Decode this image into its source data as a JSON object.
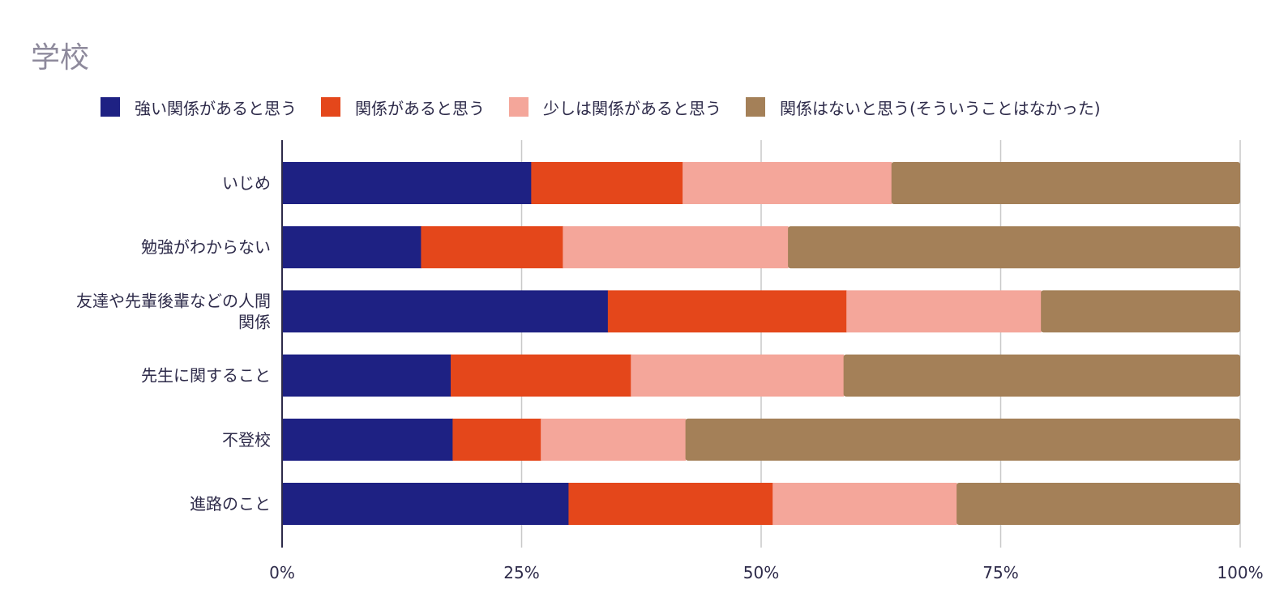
{
  "chart_data": {
    "type": "bar",
    "orientation": "horizontal",
    "stacked": "percent",
    "title": "学校",
    "categories": [
      "いじめ",
      "勉強がわからない",
      "友達や先輩後輩などの人間関係",
      "先生に関すること",
      "不登校",
      "進路のこと"
    ],
    "category_lines": [
      [
        "いじめ"
      ],
      [
        "勉強がわからない"
      ],
      [
        "友達や先輩後輩などの人間",
        "関係"
      ],
      [
        "先生に関すること"
      ],
      [
        "不登校"
      ],
      [
        "進路のこと"
      ]
    ],
    "series": [
      {
        "name": "強い関係があると思う",
        "color": "#1e2183",
        "values": [
          26.0,
          14.5,
          34.0,
          17.6,
          17.8,
          29.9
        ]
      },
      {
        "name": "関係があると思う",
        "color": "#e4471b",
        "values": [
          15.8,
          14.8,
          24.9,
          18.8,
          9.2,
          21.3
        ]
      },
      {
        "name": "少しは関係があると思う",
        "color": "#f4a69a",
        "values": [
          21.8,
          23.5,
          20.3,
          22.2,
          15.1,
          19.2
        ]
      },
      {
        "name": "関係はないと思う(そういうことはなかった)",
        "color": "#a48058",
        "values": [
          36.4,
          47.2,
          20.8,
          41.4,
          57.9,
          29.6
        ]
      }
    ],
    "xticks": [
      "0%",
      "25%",
      "50%",
      "75%",
      "100%"
    ],
    "xtick_values": [
      0,
      25,
      50,
      75,
      100
    ],
    "xlim": [
      0,
      100
    ],
    "grid": true,
    "legend_position": "top"
  }
}
